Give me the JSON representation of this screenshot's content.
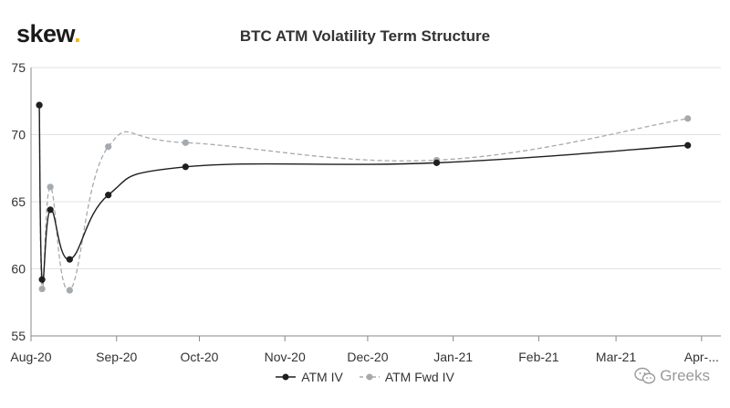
{
  "logo": {
    "text": "skew",
    "dot": "."
  },
  "watermark": {
    "text": "Greeks",
    "icon": "wechat-icon"
  },
  "colors": {
    "atm_iv": "#1f1f1f",
    "atm_fwd_iv": "#a5aaae",
    "grid": "#e2e2e2",
    "axis": "#888888"
  },
  "chart_data": {
    "type": "line",
    "title": "BTC ATM Volatility Term Structure",
    "xlabel": "",
    "ylabel": "",
    "ylim": [
      55,
      75
    ],
    "yticks": [
      55,
      60,
      65,
      70,
      75
    ],
    "xlim": [
      0,
      250
    ],
    "x_ticks": [
      {
        "day": 0,
        "label": "Aug-20"
      },
      {
        "day": 31,
        "label": "Sep-20"
      },
      {
        "day": 61,
        "label": "Oct-20"
      },
      {
        "day": 92,
        "label": "Nov-20"
      },
      {
        "day": 122,
        "label": "Dec-20"
      },
      {
        "day": 153,
        "label": "Jan-21"
      },
      {
        "day": 184,
        "label": "Feb-21"
      },
      {
        "day": 212,
        "label": "Mar-21"
      },
      {
        "day": 243,
        "label": "Apr-..."
      }
    ],
    "series": [
      {
        "name": "ATM IV",
        "style": "solid",
        "points": [
          [
            3,
            72.2
          ],
          [
            4,
            59.2
          ],
          [
            7,
            64.4
          ],
          [
            14,
            60.7
          ],
          [
            28,
            65.5
          ],
          [
            56,
            67.6
          ],
          [
            147,
            67.9
          ],
          [
            238,
            69.2
          ]
        ]
      },
      {
        "name": "ATM Fwd IV",
        "style": "dashed",
        "points": [
          [
            3,
            72.2
          ],
          [
            4,
            58.5
          ],
          [
            7,
            66.1
          ],
          [
            14,
            58.4
          ],
          [
            28,
            69.1
          ],
          [
            56,
            69.4
          ],
          [
            147,
            68.1
          ],
          [
            238,
            71.2
          ]
        ]
      }
    ],
    "legend_position": "bottom-center",
    "grid": true
  }
}
